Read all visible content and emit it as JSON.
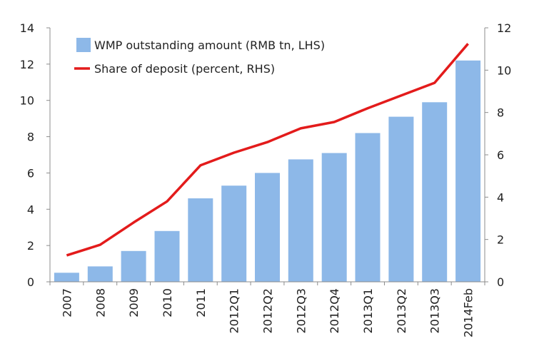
{
  "chart_data": {
    "type": "bar",
    "categories": [
      "2007",
      "2008",
      "2009",
      "2010",
      "2011",
      "2012Q1",
      "2012Q2",
      "2012Q3",
      "2012Q4",
      "2013Q1",
      "2013Q2",
      "2013Q3",
      "2014Feb"
    ],
    "series": [
      {
        "name": "WMP outstanding amount (RMB tn, LHS)",
        "type": "bar",
        "axis": "left",
        "color": "#8DB8E8",
        "values": [
          0.5,
          0.85,
          1.7,
          2.8,
          4.6,
          5.3,
          6.0,
          6.75,
          7.1,
          8.2,
          9.1,
          9.9,
          12.2
        ]
      },
      {
        "name": "Share of deposit (percent, RHS)",
        "type": "line",
        "axis": "right",
        "color": "#E31B1B",
        "values": [
          1.25,
          1.75,
          2.8,
          3.8,
          5.5,
          6.1,
          6.6,
          7.25,
          7.55,
          8.2,
          8.8,
          9.4,
          11.25
        ]
      }
    ],
    "y_left": {
      "min": 0,
      "max": 14,
      "ticks": [
        "0",
        "2",
        "4",
        "6",
        "8",
        "10",
        "12",
        "14"
      ]
    },
    "y_right": {
      "min": 0,
      "max": 12,
      "ticks": [
        "0",
        "2",
        "4",
        "6",
        "8",
        "10",
        "12"
      ]
    },
    "legend_position": "top-left",
    "grid": false
  }
}
